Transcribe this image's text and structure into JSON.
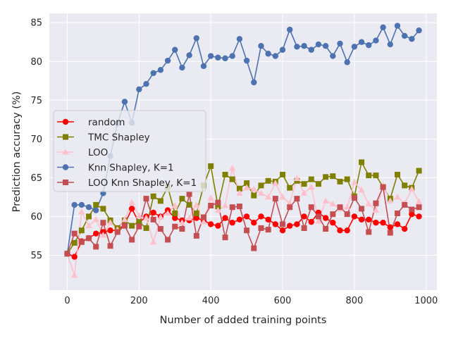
{
  "chart_data": {
    "type": "line",
    "xlabel": "Number of added training points",
    "ylabel": "Prediction accuracy (%)",
    "xlim": [
      -50,
      1030
    ],
    "ylim": [
      50.5,
      86.2
    ],
    "xticks": [
      0,
      200,
      400,
      600,
      800,
      1000
    ],
    "yticks": [
      55,
      60,
      65,
      70,
      75,
      80,
      85
    ],
    "grid": true,
    "background": "#eaeaf2",
    "legend_position": "center-left",
    "x": [
      0,
      20,
      40,
      60,
      80,
      100,
      120,
      140,
      160,
      180,
      200,
      220,
      240,
      260,
      280,
      300,
      320,
      340,
      360,
      380,
      400,
      420,
      440,
      460,
      480,
      500,
      520,
      540,
      560,
      580,
      600,
      620,
      640,
      660,
      680,
      700,
      720,
      740,
      760,
      780,
      800,
      820,
      840,
      860,
      880,
      900,
      920,
      940,
      960,
      980
    ],
    "series": [
      {
        "name": "random",
        "color": "#ff0000",
        "marker": "circle",
        "values": [
          55.2,
          54.8,
          56.8,
          57.2,
          57.8,
          58.0,
          58.2,
          58.2,
          59.0,
          61.0,
          59.2,
          60.0,
          60.5,
          60.0,
          60.8,
          59.8,
          59.5,
          59.5,
          59.8,
          59.5,
          59.0,
          58.8,
          59.8,
          59.2,
          59.6,
          60.0,
          59.2,
          60.0,
          59.6,
          59.0,
          58.2,
          58.8,
          59.0,
          60.0,
          59.3,
          60.5,
          59.8,
          59.2,
          58.2,
          58.2,
          60.0,
          59.6,
          59.6,
          59.2,
          59.2,
          58.6,
          59.0,
          58.4,
          60.3,
          60.0
        ]
      },
      {
        "name": "TMC Shapley",
        "color": "#808000",
        "marker": "square",
        "values": [
          55.2,
          56.6,
          58.2,
          60.0,
          61.5,
          61.0,
          59.5,
          58.5,
          59.5,
          58.8,
          59.3,
          58.5,
          62.6,
          62.0,
          63.8,
          60.4,
          62.3,
          61.5,
          60.4,
          64.0,
          66.5,
          61.3,
          65.4,
          64.8,
          63.6,
          64.3,
          62.7,
          64.0,
          64.6,
          64.5,
          65.4,
          63.7,
          64.6,
          64.2,
          64.8,
          64.2,
          65.1,
          65.2,
          64.5,
          64.8,
          62.6,
          67.0,
          65.3,
          65.3,
          63.8,
          62.3,
          65.4,
          64.0,
          63.7,
          65.9
        ]
      },
      {
        "name": "LOO",
        "color": "#ffc0cb",
        "marker": "triangle",
        "values": [
          55.2,
          52.4,
          60.6,
          58.8,
          59.6,
          57.6,
          59.2,
          58.3,
          59.6,
          61.8,
          60.1,
          59.8,
          56.7,
          59.9,
          60.4,
          61.4,
          59.2,
          59.8,
          61.5,
          59.3,
          62.4,
          60.8,
          61.4,
          66.2,
          63.0,
          63.7,
          63.5,
          63.0,
          62.5,
          64.3,
          62.5,
          61.7,
          64.9,
          63.0,
          63.8,
          59.4,
          62.0,
          61.6,
          61.0,
          61.2,
          64.4,
          63.4,
          61.6,
          60.8,
          64.0,
          62.0,
          62.5,
          61.7,
          63.5,
          61.9
        ]
      },
      {
        "name": "Knn Shapley, K=1",
        "color": "#4c72b0",
        "marker": "circle",
        "values": [
          55.2,
          61.5,
          61.5,
          61.2,
          60.8,
          63.0,
          67.8,
          72.0,
          74.8,
          72.1,
          76.4,
          77.1,
          78.5,
          78.9,
          80.1,
          81.5,
          79.2,
          80.8,
          83.0,
          79.4,
          80.7,
          80.5,
          80.4,
          80.7,
          82.9,
          80.1,
          77.3,
          82.0,
          81.0,
          80.7,
          81.5,
          84.1,
          81.9,
          82.0,
          81.5,
          82.2,
          82.0,
          80.7,
          82.3,
          79.9,
          81.9,
          82.5,
          82.1,
          82.7,
          84.4,
          82.2,
          84.6,
          83.3,
          82.9,
          84.0
        ]
      },
      {
        "name": "LOO Knn Shapley, K=1",
        "color": "#c44e52",
        "marker": "square",
        "values": [
          55.2,
          57.8,
          56.7,
          57.2,
          56.1,
          59.2,
          56.2,
          58.0,
          58.8,
          57.0,
          58.7,
          62.3,
          59.6,
          58.4,
          57.0,
          58.7,
          58.4,
          62.9,
          57.5,
          59.9,
          61.4,
          61.8,
          57.3,
          61.2,
          61.3,
          58.2,
          55.9,
          58.5,
          58.3,
          62.3,
          59.0,
          61.2,
          62.3,
          58.5,
          61.2,
          60.0,
          58.4,
          60.3,
          61.2,
          60.3,
          62.4,
          61.0,
          58.0,
          61.7,
          63.8,
          57.9,
          60.4,
          61.5,
          60.9,
          61.2
        ]
      }
    ]
  }
}
